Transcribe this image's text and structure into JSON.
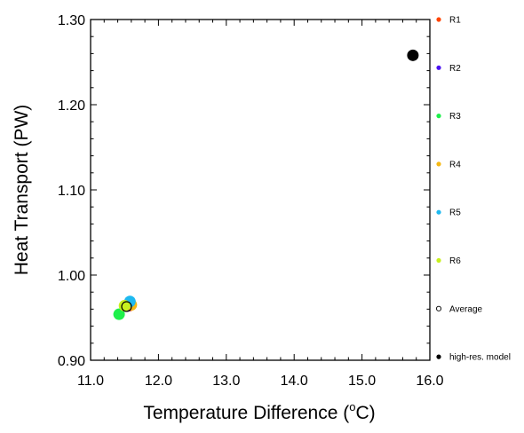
{
  "chart_data": {
    "type": "scatter",
    "title": "",
    "xlabel": "Temperature Difference (",
    "xlabel_unit_sup": "o",
    "xlabel_unit_end": "C)",
    "ylabel": "Heat Transport (PW)",
    "xlim": [
      11.0,
      16.0
    ],
    "ylim": [
      0.9,
      1.3
    ],
    "x_ticks": [
      11.0,
      12.0,
      13.0,
      14.0,
      15.0,
      16.0
    ],
    "x_tick_labels": [
      "11.0",
      "12.0",
      "13.0",
      "14.0",
      "15.0",
      "16.0"
    ],
    "y_ticks": [
      0.9,
      1.0,
      1.1,
      1.2,
      1.3
    ],
    "y_tick_labels": [
      "0.90",
      "1.00",
      "1.10",
      "1.20",
      "1.30"
    ],
    "grid": false,
    "legend_position": "right",
    "series": [
      {
        "name": "R1",
        "color": "#ff4500",
        "marker": "filled-circle",
        "points": [
          {
            "x": 11.57,
            "y": 0.964
          }
        ]
      },
      {
        "name": "R2",
        "color": "#4b12f2",
        "marker": "filled-circle",
        "points": [
          {
            "x": 11.55,
            "y": 0.964
          }
        ]
      },
      {
        "name": "R3",
        "color": "#1ef04b",
        "marker": "filled-circle",
        "points": [
          {
            "x": 11.42,
            "y": 0.954
          }
        ]
      },
      {
        "name": "R4",
        "color": "#f5b916",
        "marker": "filled-circle",
        "points": [
          {
            "x": 11.6,
            "y": 0.965
          }
        ]
      },
      {
        "name": "R5",
        "color": "#1eb9f0",
        "marker": "filled-circle",
        "points": [
          {
            "x": 11.58,
            "y": 0.969
          }
        ]
      },
      {
        "name": "R6",
        "color": "#c8f01e",
        "marker": "filled-circle",
        "points": [
          {
            "x": 11.5,
            "y": 0.964
          }
        ]
      },
      {
        "name": "Average",
        "color": "#000000",
        "marker": "open-circle",
        "points": [
          {
            "x": 11.53,
            "y": 0.963
          }
        ]
      },
      {
        "name": "high-res. model",
        "color": "#000000",
        "marker": "filled-circle",
        "points": [
          {
            "x": 15.75,
            "y": 1.258
          }
        ]
      }
    ]
  }
}
